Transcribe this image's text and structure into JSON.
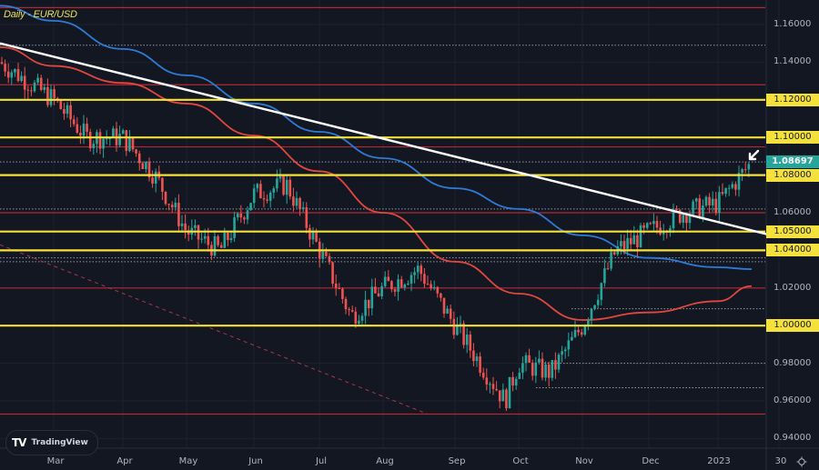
{
  "header": {
    "title": "Daily - EUR/USD"
  },
  "branding": {
    "logo_mark": "TV",
    "logo_text": "TradingView"
  },
  "price_axis": {
    "labels": [
      "1.16000",
      "1.14000",
      "1.12000",
      "1.10000",
      "1.08000",
      "1.06000",
      "1.05000",
      "1.04000",
      "1.02000",
      "1.00000",
      "0.98000",
      "0.96000",
      "0.94000"
    ],
    "highlighted": [
      "1.12000",
      "1.10000",
      "1.08000",
      "1.05000",
      "1.04000",
      "1.00000"
    ],
    "current_price": "1.08697"
  },
  "time_axis": {
    "labels": [
      "Mar",
      "Apr",
      "May",
      "Jun",
      "Jul",
      "Aug",
      "Sep",
      "Oct",
      "Nov",
      "Dec",
      "2023",
      "30"
    ]
  },
  "colors": {
    "background": "#131722",
    "up_candle": "#26a69a",
    "down_candle": "#ef5350",
    "support_resistance_yellow": "#f5e13b",
    "level_red": "#b22833",
    "ma_red": "#e0473f",
    "ma_blue": "#2e7bd6",
    "trendline": "#ffffff",
    "dotted_level": "#9598a1"
  },
  "chart_data": {
    "type": "candlestick",
    "title": "Daily - EUR/USD",
    "symbol": "EUR/USD",
    "timeframe": "Daily",
    "xlabel": "",
    "ylabel": "",
    "ylim": [
      0.935,
      1.17
    ],
    "x_ticks": [
      "Mar",
      "Apr",
      "May",
      "Jun",
      "Jul",
      "Aug",
      "Sep",
      "Oct",
      "Nov",
      "Dec",
      "2023",
      "30"
    ],
    "y_ticks": [
      0.94,
      0.96,
      0.98,
      1.0,
      1.02,
      1.04,
      1.06,
      1.08,
      1.1,
      1.12,
      1.14,
      1.16
    ],
    "current_price": 1.08697,
    "horizontal_levels": {
      "yellow": [
        1.12,
        1.1,
        1.08,
        1.05,
        1.04,
        1.0
      ],
      "red": [
        1.169,
        1.128,
        1.095,
        1.06,
        1.02,
        0.953
      ],
      "dotted": [
        1.149,
        1.087,
        1.062,
        1.036,
        1.034,
        1.009,
        0.98,
        0.967
      ]
    },
    "moving_averages": [
      {
        "name": "Long MA (blue)",
        "color": "#2e7bd6",
        "points": [
          [
            "Feb",
            1.17
          ],
          [
            "Mar",
            1.162
          ],
          [
            "Apr",
            1.147
          ],
          [
            "May",
            1.133
          ],
          [
            "Jun",
            1.118
          ],
          [
            "Jul",
            1.103
          ],
          [
            "Aug",
            1.089
          ],
          [
            "Sep",
            1.073
          ],
          [
            "Oct",
            1.062
          ],
          [
            "Nov",
            1.048
          ],
          [
            "Dec",
            1.036
          ],
          [
            "2023",
            1.031
          ],
          [
            "mid-Jan",
            1.03
          ]
        ]
      },
      {
        "name": "Short MA (red)",
        "color": "#e0473f",
        "points": [
          [
            "Feb",
            1.148
          ],
          [
            "Mar",
            1.138
          ],
          [
            "Apr",
            1.129
          ],
          [
            "May",
            1.118
          ],
          [
            "Jun",
            1.101
          ],
          [
            "Jul",
            1.082
          ],
          [
            "Aug",
            1.06
          ],
          [
            "Sep",
            1.034
          ],
          [
            "Oct",
            1.017
          ],
          [
            "Nov",
            1.003
          ],
          [
            "Dec",
            1.007
          ],
          [
            "2023",
            1.013
          ],
          [
            "mid-Jan",
            1.021
          ]
        ]
      }
    ],
    "trendlines": [
      {
        "name": "Descending resistance (white)",
        "from": [
          "Feb",
          1.15
        ],
        "to": [
          "end-Jan",
          1.047
        ]
      },
      {
        "name": "Descending dashed (red)",
        "from": [
          "Feb",
          1.043
        ],
        "to": [
          "Sep",
          0.953
        ]
      }
    ],
    "price_path": [
      [
        "Feb",
        1.14
      ],
      [
        "Mar",
        1.12
      ],
      [
        "Mar-mid",
        1.1
      ],
      [
        "Apr",
        1.1
      ],
      [
        "Apr-mid",
        1.08
      ],
      [
        "May",
        1.05
      ],
      [
        "May-mid",
        1.04
      ],
      [
        "Jun",
        1.07
      ],
      [
        "Jun-mid",
        1.075
      ],
      [
        "Jul",
        1.04
      ],
      [
        "Jul-mid",
        1.005
      ],
      [
        "Aug",
        1.02
      ],
      [
        "Aug-mid",
        1.03
      ],
      [
        "Sep",
        1.0
      ],
      [
        "Sep-end",
        0.96
      ],
      [
        "Oct",
        0.98
      ],
      [
        "Oct-mid",
        0.975
      ],
      [
        "Nov",
        1.0
      ],
      [
        "Nov-mid",
        1.04
      ],
      [
        "Dec",
        1.05
      ],
      [
        "Dec-mid",
        1.06
      ],
      [
        "2023",
        1.065
      ],
      [
        "Jan-mid",
        1.087
      ]
    ]
  }
}
